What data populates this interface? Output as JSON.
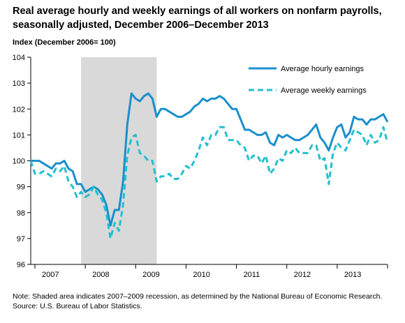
{
  "title": "Real average hourly and weekly earnings of all workers on nonfarm payrolls, seasonally adjusted, December 2006–December 2013",
  "y_axis_title": "Index  (December 2006= 100)",
  "note": "Note: Shaded area indicates 2007–2009 recession, as determined by the National Bureau of Economic Research.",
  "source": "Source: U.S. Bureau of Labor Statistics.",
  "colors": {
    "hourly": "#1a8fcc",
    "weekly": "#21c0cf",
    "recession": "#d9d9d9"
  },
  "chart_data": {
    "type": "line",
    "title": "Real average hourly and weekly earnings of all workers on nonfarm payrolls, seasonally adjusted, December 2006–December 2013",
    "ylabel": "Index  (December 2006= 100)",
    "ylim": [
      96,
      104
    ],
    "yticks": [
      96,
      97,
      98,
      99,
      100,
      101,
      102,
      103,
      104
    ],
    "xticks": [
      "2007",
      "2008",
      "2009",
      "2010",
      "2011",
      "2012",
      "2013"
    ],
    "x_start": "Dec 2006",
    "x_end": "Dec 2013",
    "recession": {
      "start": "Dec 2007",
      "end": "Jun 2009"
    },
    "legend_position": "top-right",
    "grid": false,
    "series": [
      {
        "name": "Average hourly earnings",
        "style": "solid",
        "values": [
          100.0,
          100.0,
          100.0,
          99.9,
          99.8,
          99.7,
          99.9,
          99.9,
          100.0,
          99.7,
          99.6,
          99.1,
          99.1,
          98.8,
          98.9,
          99.0,
          98.9,
          98.7,
          98.3,
          97.5,
          98.1,
          98.1,
          99.2,
          101.4,
          102.6,
          102.4,
          102.3,
          102.5,
          102.6,
          102.4,
          101.7,
          102.0,
          102.0,
          101.9,
          101.8,
          101.7,
          101.7,
          101.8,
          101.9,
          102.1,
          102.2,
          102.4,
          102.3,
          102.4,
          102.4,
          102.5,
          102.4,
          102.2,
          102.0,
          102.0,
          101.6,
          101.2,
          101.2,
          101.1,
          101.0,
          101.0,
          101.1,
          100.7,
          100.6,
          101.0,
          100.9,
          101.0,
          100.9,
          100.8,
          100.8,
          100.9,
          101.0,
          101.2,
          101.4,
          100.9,
          100.7,
          100.4,
          100.9,
          101.3,
          101.4,
          100.9,
          101.1,
          101.7,
          101.6,
          101.6,
          101.4,
          101.6,
          101.6,
          101.7,
          101.8,
          101.5
        ]
      },
      {
        "name": "Average weekly earnings",
        "style": "dashed",
        "values": [
          100.0,
          99.5,
          99.5,
          99.6,
          99.5,
          99.4,
          99.7,
          99.6,
          99.8,
          99.2,
          99.0,
          98.6,
          98.8,
          98.6,
          98.7,
          99.0,
          98.7,
          98.5,
          98.0,
          97.0,
          97.6,
          97.3,
          98.3,
          100.2,
          100.9,
          101.0,
          100.3,
          100.2,
          100.0,
          100.0,
          99.2,
          99.4,
          99.4,
          99.5,
          99.3,
          99.3,
          99.5,
          99.8,
          99.7,
          100.0,
          100.4,
          100.9,
          100.6,
          101.0,
          101.0,
          101.3,
          101.3,
          100.8,
          100.8,
          100.8,
          100.6,
          100.5,
          100.0,
          100.2,
          100.2,
          99.9,
          100.2,
          99.5,
          99.7,
          100.1,
          100.0,
          100.4,
          100.3,
          100.5,
          100.3,
          100.3,
          100.3,
          100.6,
          100.6,
          100.0,
          100.1,
          99.1,
          100.3,
          100.7,
          100.5,
          100.4,
          100.8,
          101.2,
          101.1,
          101.0,
          100.6,
          101.0,
          100.7,
          100.8,
          101.3,
          100.7
        ]
      }
    ]
  }
}
